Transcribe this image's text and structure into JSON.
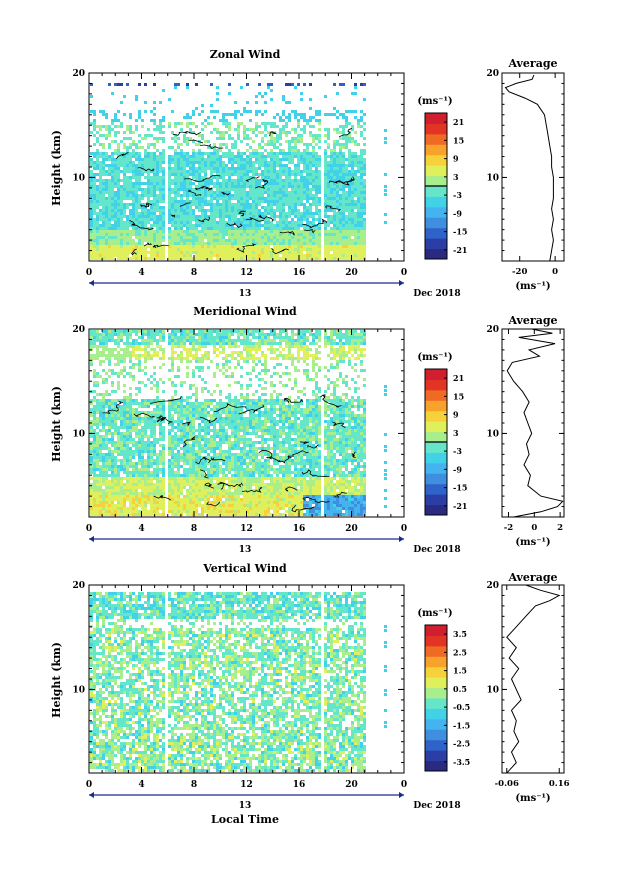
{
  "figure": {
    "xlabel": "Local Time",
    "date_label": "Dec 2018",
    "day_label": "13",
    "ylabel": "Height (km)",
    "cbar_unit": "(ms⁻¹)",
    "avg_title": "Average",
    "avg_xunit": "(ms⁻¹)"
  },
  "chart_data": [
    {
      "type": "heatmap",
      "title": "Zonal Wind",
      "xlabel": "Local Time",
      "ylabel": "Height (km)",
      "x_ticks": [
        "0",
        "4",
        "8",
        "12",
        "16",
        "20",
        "0"
      ],
      "xlim": [
        0,
        24
      ],
      "ylim": [
        2,
        20
      ],
      "y_ticks": [
        "10",
        "20"
      ],
      "colorbar": {
        "unit": "(ms⁻¹)",
        "ticks": [
          "21",
          "15",
          "9",
          "3",
          "-3",
          "-9",
          "-15",
          "-21"
        ],
        "range": [
          -24,
          24
        ],
        "zero_line": true
      },
      "average_profile": {
        "title": "Average",
        "x_ticks": [
          "-20",
          "0"
        ],
        "xlim": [
          -30,
          5
        ],
        "y_ticks": [
          "10",
          "20"
        ],
        "profile": [
          [
            -3,
            2
          ],
          [
            -2,
            3
          ],
          [
            -1,
            4
          ],
          [
            -2,
            5
          ],
          [
            -1,
            6
          ],
          [
            -2,
            7
          ],
          [
            -1,
            8
          ],
          [
            -1,
            9
          ],
          [
            -1,
            10
          ],
          [
            -2,
            11
          ],
          [
            -2,
            12
          ],
          [
            -3,
            13
          ],
          [
            -4,
            14
          ],
          [
            -5,
            15
          ],
          [
            -6,
            16
          ],
          [
            -10,
            17
          ],
          [
            -17,
            17.6
          ],
          [
            -26,
            18.2
          ],
          [
            -28,
            18.6
          ],
          [
            -22,
            19.0
          ],
          [
            -13,
            19.4
          ],
          [
            -12,
            19.8
          ]
        ]
      }
    },
    {
      "type": "heatmap",
      "title": "Meridional Wind",
      "xlabel": "Local Time",
      "ylabel": "Height (km)",
      "x_ticks": [
        "0",
        "4",
        "8",
        "12",
        "16",
        "20",
        "0"
      ],
      "xlim": [
        0,
        24
      ],
      "ylim": [
        2,
        20
      ],
      "y_ticks": [
        "10",
        "20"
      ],
      "colorbar": {
        "unit": "(ms⁻¹)",
        "ticks": [
          "21",
          "15",
          "9",
          "3",
          "-3",
          "-9",
          "-15",
          "-21"
        ],
        "range": [
          -24,
          24
        ],
        "zero_line": true
      },
      "average_profile": {
        "title": "Average",
        "x_ticks": [
          "-2",
          "0",
          "2"
        ],
        "xlim": [
          -2.5,
          2.3
        ],
        "y_ticks": [
          "10",
          "20"
        ],
        "profile": [
          [
            -1.6,
            2
          ],
          [
            0.5,
            2.5
          ],
          [
            1.8,
            3
          ],
          [
            2.2,
            3.5
          ],
          [
            0.5,
            4
          ],
          [
            -0.5,
            5
          ],
          [
            -0.3,
            6
          ],
          [
            -0.8,
            7
          ],
          [
            -0.4,
            8
          ],
          [
            -0.6,
            9
          ],
          [
            -0.2,
            10
          ],
          [
            -0.5,
            11
          ],
          [
            -0.8,
            12
          ],
          [
            -0.4,
            13
          ],
          [
            -0.9,
            14
          ],
          [
            -1.6,
            15
          ],
          [
            -2.1,
            16
          ],
          [
            -1.7,
            16.8
          ],
          [
            0.4,
            17.4
          ],
          [
            -0.4,
            18
          ],
          [
            1.6,
            18.6
          ],
          [
            -1.2,
            19.2
          ],
          [
            1.4,
            19.6
          ],
          [
            -0.2,
            20
          ]
        ]
      }
    },
    {
      "type": "heatmap",
      "title": "Vertical Wind",
      "xlabel": "Local Time",
      "ylabel": "Height (km)",
      "x_ticks": [
        "0",
        "4",
        "8",
        "12",
        "16",
        "20",
        "0"
      ],
      "xlim": [
        0,
        24
      ],
      "ylim": [
        2,
        20
      ],
      "y_ticks": [
        "10",
        "20"
      ],
      "colorbar": {
        "unit": "(ms⁻¹)",
        "ticks": [
          "3.5",
          "2.5",
          "1.5",
          "0.5",
          "-0.5",
          "-1.5",
          "-2.5",
          "-3.5"
        ],
        "range": [
          -4,
          4
        ],
        "zero_line": false
      },
      "average_profile": {
        "title": "Average",
        "x_ticks": [
          "-0.06",
          "0.16"
        ],
        "xlim": [
          -0.08,
          0.18
        ],
        "y_ticks": [
          "10",
          "20"
        ],
        "profile": [
          [
            -0.06,
            2
          ],
          [
            -0.02,
            3
          ],
          [
            -0.04,
            4
          ],
          [
            -0.01,
            5
          ],
          [
            -0.03,
            6
          ],
          [
            -0.02,
            7
          ],
          [
            -0.04,
            8
          ],
          [
            0.0,
            9
          ],
          [
            -0.02,
            10
          ],
          [
            -0.04,
            11
          ],
          [
            -0.01,
            12
          ],
          [
            -0.05,
            13
          ],
          [
            -0.02,
            14
          ],
          [
            -0.06,
            15
          ],
          [
            -0.02,
            16
          ],
          [
            0.02,
            17
          ],
          [
            0.06,
            18
          ],
          [
            0.12,
            18.5
          ],
          [
            0.16,
            19
          ],
          [
            0.08,
            19.5
          ],
          [
            0.02,
            20
          ]
        ]
      }
    }
  ]
}
